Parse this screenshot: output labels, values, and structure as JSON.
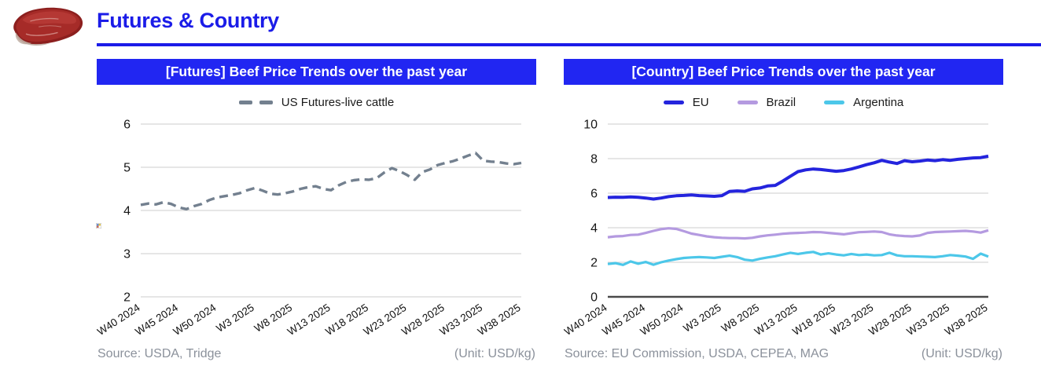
{
  "page": {
    "title": "Futures & Country"
  },
  "chart_data": [
    {
      "type": "line",
      "title": "[Futures] Beef Price Trends over the past year",
      "source_label": "Source: USDA, Tridge",
      "unit_label": "(Unit: USD/kg)",
      "unit": "USD/kg",
      "legend_position": "top",
      "grid": true,
      "x_axis_dark_baseline": false,
      "ylim": [
        2,
        6
      ],
      "yticks": [
        2,
        3,
        4,
        5,
        6
      ],
      "n_points": 51,
      "tick_step": 5,
      "x_tick_labels": [
        "W40 2024",
        "W45 2024",
        "W50 2024",
        "W3 2025",
        "W8 2025",
        "W13 2025",
        "W18 2025",
        "W23 2025",
        "W28 2025",
        "W33 2025",
        "W38 2025"
      ],
      "series": [
        {
          "name": "US Futures-live cattle",
          "color": "#73808f",
          "line_style": "dashed",
          "line_width": 3.4,
          "values": [
            4.13,
            4.16,
            4.14,
            4.19,
            4.15,
            4.07,
            4.03,
            4.1,
            4.15,
            4.24,
            4.3,
            4.33,
            4.36,
            4.4,
            4.47,
            4.52,
            4.46,
            4.39,
            4.37,
            4.4,
            4.44,
            4.5,
            4.54,
            4.56,
            4.5,
            4.47,
            4.58,
            4.66,
            4.7,
            4.72,
            4.71,
            4.75,
            4.88,
            4.98,
            4.91,
            4.82,
            4.71,
            4.89,
            4.95,
            5.05,
            5.1,
            5.14,
            5.2,
            5.27,
            5.33,
            5.15,
            5.13,
            5.12,
            5.09,
            5.07,
            5.1
          ]
        }
      ]
    },
    {
      "type": "line",
      "title": "[Country] Beef Price Trends over the past year",
      "source_label": "Source: EU Commission, USDA, CEPEA, MAG",
      "unit_label": "(Unit: USD/kg)",
      "unit": "USD/kg",
      "legend_position": "top",
      "grid": true,
      "x_axis_dark_baseline": true,
      "ylim": [
        0,
        10
      ],
      "yticks": [
        0,
        2,
        4,
        6,
        8,
        10
      ],
      "n_points": 51,
      "tick_step": 5,
      "x_tick_labels": [
        "W40 2024",
        "W45 2024",
        "W50 2024",
        "W3 2025",
        "W8 2025",
        "W13 2025",
        "W18 2025",
        "W23 2025",
        "W28 2025",
        "W33 2025",
        "W38 2025"
      ],
      "series": [
        {
          "name": "EU",
          "color": "#2424dd",
          "line_style": "solid",
          "line_width": 4,
          "values": [
            5.75,
            5.77,
            5.76,
            5.78,
            5.76,
            5.72,
            5.66,
            5.72,
            5.8,
            5.85,
            5.87,
            5.9,
            5.86,
            5.84,
            5.82,
            5.86,
            6.1,
            6.13,
            6.11,
            6.25,
            6.3,
            6.42,
            6.45,
            6.7,
            6.98,
            7.25,
            7.35,
            7.4,
            7.37,
            7.32,
            7.27,
            7.31,
            7.4,
            7.52,
            7.65,
            7.76,
            7.9,
            7.8,
            7.72,
            7.88,
            7.82,
            7.86,
            7.92,
            7.88,
            7.94,
            7.9,
            7.96,
            8.0,
            8.04,
            8.06,
            8.14
          ]
        },
        {
          "name": "Brazil",
          "color": "#b49ae0",
          "line_style": "solid",
          "line_width": 3.2,
          "values": [
            3.45,
            3.5,
            3.52,
            3.58,
            3.6,
            3.7,
            3.82,
            3.92,
            3.97,
            3.93,
            3.8,
            3.66,
            3.58,
            3.5,
            3.45,
            3.42,
            3.4,
            3.4,
            3.38,
            3.42,
            3.5,
            3.56,
            3.6,
            3.65,
            3.68,
            3.7,
            3.72,
            3.75,
            3.74,
            3.7,
            3.66,
            3.62,
            3.68,
            3.74,
            3.76,
            3.78,
            3.75,
            3.62,
            3.55,
            3.52,
            3.5,
            3.55,
            3.7,
            3.75,
            3.77,
            3.78,
            3.8,
            3.82,
            3.78,
            3.72,
            3.85
          ]
        },
        {
          "name": "Argentina",
          "color": "#4cc7e9",
          "line_style": "solid",
          "line_width": 3.2,
          "values": [
            1.9,
            1.95,
            1.85,
            2.05,
            1.92,
            2.02,
            1.86,
            2.0,
            2.1,
            2.18,
            2.25,
            2.28,
            2.3,
            2.28,
            2.25,
            2.32,
            2.38,
            2.3,
            2.15,
            2.1,
            2.2,
            2.28,
            2.35,
            2.45,
            2.55,
            2.48,
            2.55,
            2.6,
            2.45,
            2.52,
            2.45,
            2.4,
            2.48,
            2.42,
            2.45,
            2.4,
            2.42,
            2.55,
            2.4,
            2.35,
            2.35,
            2.33,
            2.32,
            2.3,
            2.35,
            2.42,
            2.38,
            2.33,
            2.2,
            2.5,
            2.33
          ]
        }
      ]
    }
  ],
  "colors": {
    "accent_blue": "#2126f2",
    "header_blue": "#1b1ce8",
    "grid": "#d8d8d8",
    "dark_axis": "#4a4a4a",
    "tick_text": "#161616",
    "footer_text": "#8b919b"
  }
}
